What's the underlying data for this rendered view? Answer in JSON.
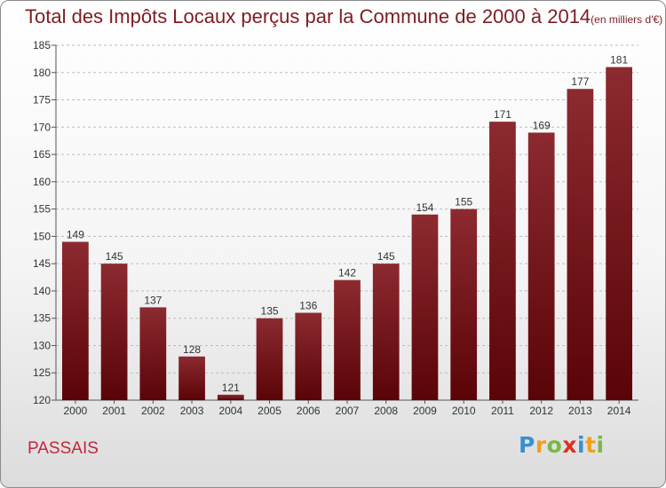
{
  "chart_data": {
    "type": "bar",
    "title": "Total des Impôts Locaux perçus par la Commune de 2000 à 2014",
    "unit": "(en milliers d'€)",
    "categories": [
      "2000",
      "2001",
      "2002",
      "2003",
      "2004",
      "2005",
      "2006",
      "2007",
      "2008",
      "2009",
      "2010",
      "2011",
      "2012",
      "2013",
      "2014"
    ],
    "values": [
      149,
      145,
      137,
      128,
      121,
      135,
      136,
      142,
      145,
      154,
      155,
      171,
      169,
      177,
      181
    ],
    "ylim": [
      120,
      185
    ],
    "yticks": [
      120,
      125,
      130,
      135,
      140,
      145,
      150,
      155,
      160,
      165,
      170,
      175,
      180,
      185
    ],
    "grid": "horizontal dashed",
    "bar_color": "#6e0e14"
  },
  "commune": "PASSAIS",
  "logo": {
    "letters": [
      "P",
      "r",
      "o",
      "x",
      "i",
      "t",
      "i"
    ],
    "colors": [
      "#3a8fd0",
      "#f0a020",
      "#7ab844",
      "#e03020",
      "#3a8fd0",
      "#f0a020",
      "#7ab844"
    ]
  }
}
